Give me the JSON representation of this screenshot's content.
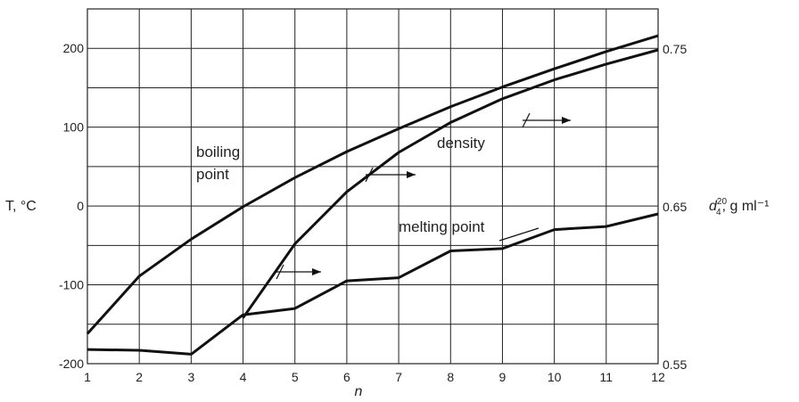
{
  "chart_data": {
    "type": "line",
    "xlabel": "n",
    "ylabel_left": "T, °C",
    "ylabel_right": {
      "symbol": "d",
      "sup": "20",
      "sub": "4",
      "unit": ", g ml⁻¹"
    },
    "x": [
      1,
      2,
      3,
      4,
      5,
      6,
      7,
      8,
      9,
      10,
      11,
      12
    ],
    "x_ticks": [
      "1",
      "2",
      "3",
      "4",
      "5",
      "6",
      "7",
      "8",
      "9",
      "10",
      "11",
      "12"
    ],
    "xlim": [
      1,
      12
    ],
    "ylim_left": [
      -200,
      250
    ],
    "y_ticks_left": [
      "200",
      "100",
      "0",
      "-100",
      "-200"
    ],
    "ylim_right": [
      0.55,
      0.775
    ],
    "y_ticks_right": [
      "0.75",
      "0.65",
      "0.55"
    ],
    "grid": true,
    "series": [
      {
        "name": "boiling point",
        "axis": "left",
        "x": [
          1,
          2,
          3,
          4,
          5,
          6,
          7,
          8,
          9,
          10,
          11,
          12
        ],
        "values": [
          -162,
          -89,
          -42,
          -1,
          36,
          69,
          98,
          126,
          151,
          174,
          196,
          216
        ]
      },
      {
        "name": "melting point",
        "axis": "left",
        "x": [
          1,
          2,
          3,
          4,
          5,
          6,
          7,
          8,
          9,
          10,
          11,
          12
        ],
        "values": [
          -182,
          -183,
          -188,
          -138,
          -130,
          -95,
          -91,
          -57,
          -54,
          -30,
          -26,
          -10
        ]
      },
      {
        "name": "density",
        "axis": "right",
        "x": [
          4,
          5,
          6,
          7,
          8,
          9,
          10,
          11,
          12
        ],
        "values": [
          0.579,
          0.626,
          0.659,
          0.684,
          0.703,
          0.718,
          0.73,
          0.74,
          0.749
        ]
      }
    ],
    "annotations": [
      "boiling point",
      "density",
      "melting point"
    ]
  }
}
